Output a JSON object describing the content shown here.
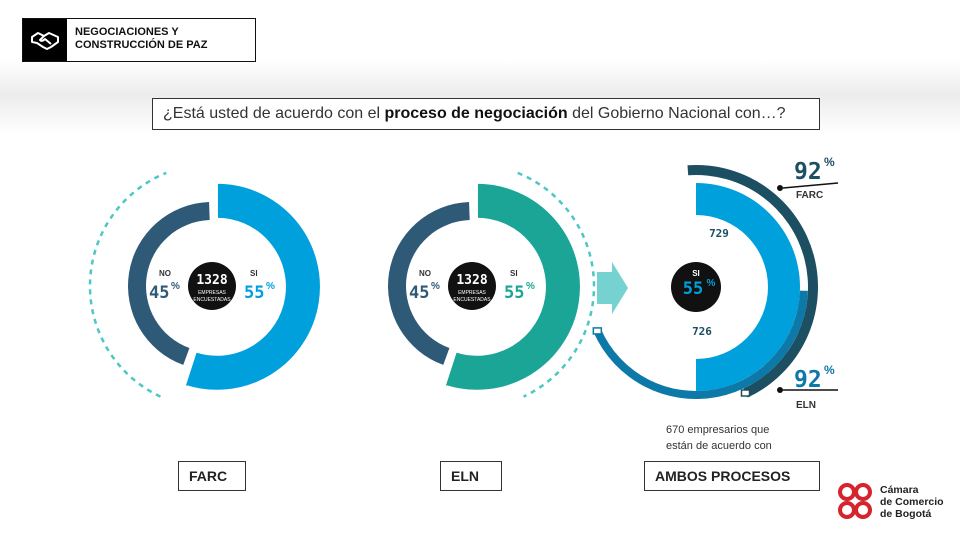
{
  "header": {
    "title": "NEGOCIACIONES Y CONSTRUCCIÓN DE PAZ",
    "icon": "handshake-icon"
  },
  "question": {
    "prefix": "¿Está usted de acuerdo con el ",
    "bold": "proceso de negociación",
    "suffix": " del Gobierno Nacional con…?"
  },
  "center": {
    "count": "1328",
    "line1": "EMPRESAS",
    "line2": "ENCUESTADAS"
  },
  "chart_data": [
    {
      "type": "pie",
      "name": "FARC",
      "categories": [
        "NO",
        "SI"
      ],
      "values": [
        45,
        55
      ],
      "value_labels": [
        "45",
        "55"
      ],
      "unit": "%",
      "colors": [
        "#2e5a78",
        "#00a0dc"
      ],
      "label": "FARC"
    },
    {
      "type": "pie",
      "name": "ELN",
      "categories": [
        "NO",
        "SI"
      ],
      "values": [
        45,
        55
      ],
      "value_labels": [
        "45",
        "55"
      ],
      "unit": "%",
      "colors": [
        "#2e5a78",
        "#1aa597"
      ],
      "label": "ELN"
    },
    {
      "type": "pie",
      "name": "AMBOS PROCESOS",
      "center_label": "SI",
      "center_value": "55",
      "unit": "%",
      "outer_arcs": [
        {
          "name": "FARC",
          "value": 92,
          "value_label": "92",
          "count": "729",
          "color": "#1d4f63"
        },
        {
          "name": "ELN",
          "value": 92,
          "value_label": "92",
          "count": "726",
          "color": "#0d79a8"
        }
      ],
      "inner_color": "#00a0dc",
      "label": "AMBOS PROCESOS"
    }
  ],
  "note": "670 empresarios que\nestán de acuerdo con",
  "logo": {
    "line1": "Cámara",
    "line2": "de Comercio",
    "line3": "de Bogotá",
    "color": "#d6242e"
  },
  "colors": {
    "dashed": "#4cc6c6",
    "arrow": "#5ec9c9"
  }
}
